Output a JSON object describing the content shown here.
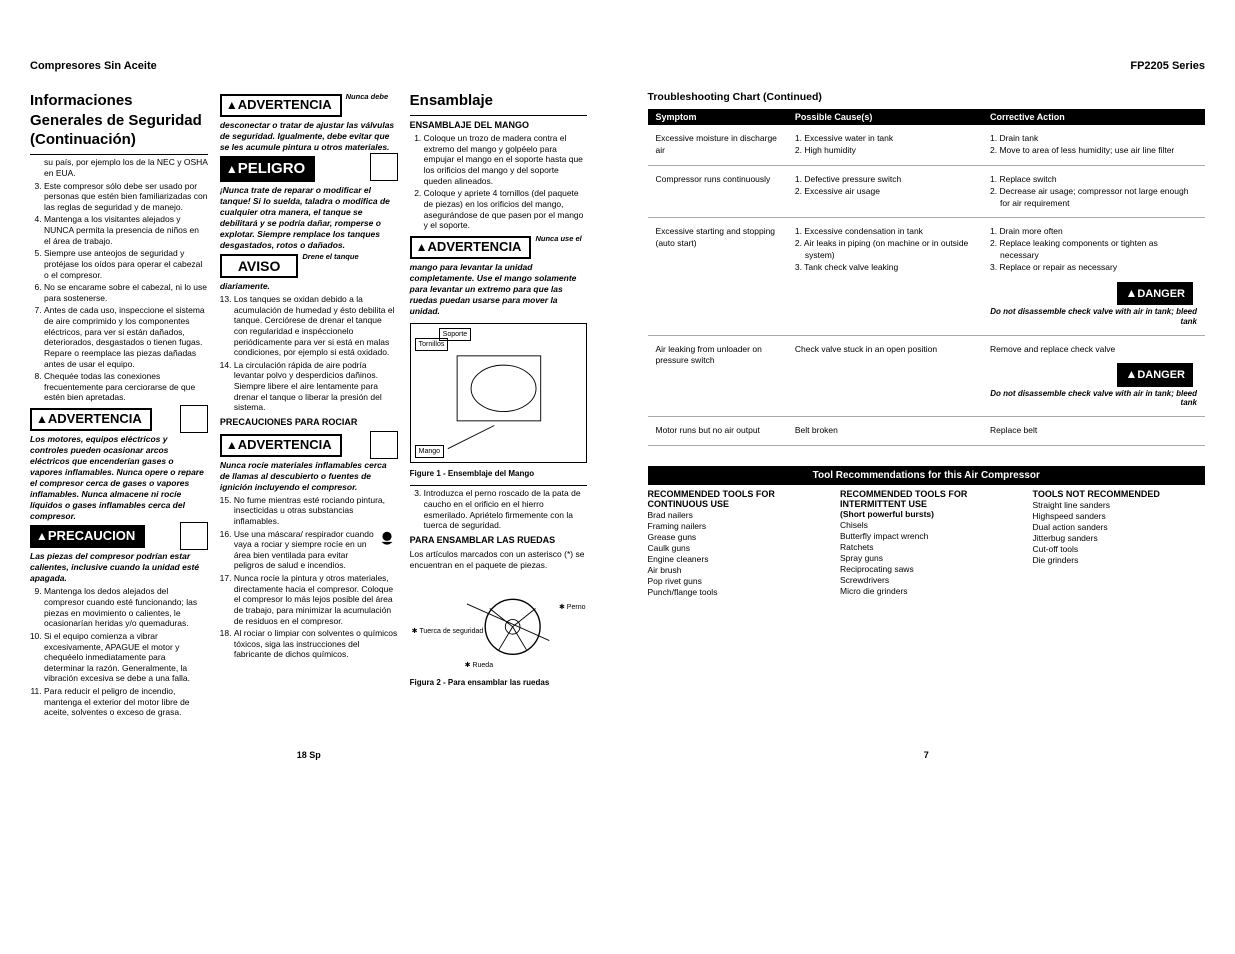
{
  "left": {
    "header": "Compresores Sin Aceite",
    "col1": {
      "title": "Informaciones Generales de Seguridad (Continuación)",
      "intro": "su país, por ejemplo los de la NEC y OSHA en EUA.",
      "items": [
        "Este compresor sólo debe ser usado por personas que estén bien familiarizadas con las reglas de seguridad y de manejo.",
        "Mantenga a los visitantes alejados y NUNCA permita la presencia de niños en el área de trabajo.",
        "Siempre use anteojos de seguridad y protéjase los oídos para operar el cabezal o el compresor.",
        "No se encarame sobre el cabezal, ni lo use para sostenerse.",
        "Antes de cada uso, inspeccione el sistema de aire comprimido y los componentes eléctricos, para ver si están dañados, deteriorados, desgastados o tienen fugas. Repare o reemplace las piezas dañadas antes de usar el equipo.",
        "Chequée todas las conexiones frecuentemente para cerciorarse de que estén bien apretadas."
      ],
      "warn1_label": "ADVERTENCIA",
      "warn1_text": "Los motores, equipos eléctricos y controles pueden ocasionar arcos eléctricos que encenderían gases o vapores inflamables. Nunca opere o repare el compresor cerca de gases o vapores inflamables. Nunca almacene ni rocíe líquidos o gases inflamables cerca del compresor.",
      "warn2_label": "PRECAUCION",
      "warn2_text": "Las piezas del compresor podrían estar calientes, inclusive cuando la unidad esté apagada.",
      "items2": [
        "Mantenga los dedos alejados del compresor cuando esté funcionando; las piezas en movimiento o calientes, le ocasionarían heridas y/o quemaduras.",
        "Si el equipo comienza a vibrar excesivamente, APAGUE el motor y chequéelo inmediatamente para determinar la razón. Generalmente, la vibración excesiva se debe a una falla.",
        "Para reducir el peligro de incendio, mantenga el exterior del motor libre de aceite, solventes o exceso de grasa."
      ]
    },
    "col2": {
      "warn1_label": "ADVERTENCIA",
      "warn1_side": "Nunca debe",
      "warn1_text": "desconectar o tratar de ajustar las válvulas de seguridad. Igualmente, debe evitar que se les acumule pintura u otros materiales.",
      "danger_label": "PELIGRO",
      "danger_text": "¡Nunca trate de reparar o modificar el tanque! Si lo suelda, taladra o modifica de cualquier otra manera, el tanque se debilitará y se podría dañar, romperse o explotar. Siempre remplace los tanques desgastados, rotos o dañados.",
      "aviso_label": "AVISO",
      "aviso_side": "Drene el tanque",
      "aviso_text": "diariamente.",
      "items": [
        "Los tanques se oxidan debido a la acumulación de humedad y ésto debilita el tanque. Cerciórese de drenar el tanque con regularidad e inspéccionelo periódicamente para ver si está en malas condiciones, por ejemplo si está oxidado.",
        "La circulación rápida de aire podría levantar polvo y desperdicios dañinos. Siempre libere el aire lentamente para drenar el tanque o liberar la presión del sistema."
      ],
      "sub1": "PRECAUCIONES PARA ROCIAR",
      "warn2_label": "ADVERTENCIA",
      "warn2_text": "Nunca rocíe materiales inflamables cerca de llamas al descubierto o fuentes de ignición incluyendo el compresor.",
      "items2": [
        "No fume mientras esté rociando pintura, insecticidas u otras substancias inflamables.",
        "Use una máscara/ respirador cuando vaya a rociar y siempre rocíe en un área bien ventilada para evitar peligros de salud e incendios.",
        "Nunca rocíe la pintura y otros materiales, directamente hacia el compresor. Coloque el compresor lo más lejos posible del área de trabajo, para minimizar la acumulación de residuos en el compresor.",
        "Al rociar o limpiar con solventes o químicos tóxicos, siga las instrucciones del fabricante de dichos químicos."
      ]
    },
    "col3": {
      "title": "Ensamblaje",
      "sub1": "ENSAMBLAJE DEL MANGO",
      "items": [
        "Coloque un trozo de madera contra el extremo del mango y golpéelo para empujar el mango en el soporte hasta que los orificios del mango y del soporte queden alineados.",
        "Coloque y apriete 4 tornillos (del paquete de piezas) en los orificios del mango, asegurándose de que pasen por el mango y el soporte."
      ],
      "warn1_label": "ADVERTENCIA",
      "warn1_side": "Nunca use el",
      "warn1_text": "mango para levantar la unidad completamente. Use el mango solamente para levantar un extremo para que las ruedas puedan usarse para mover la unidad.",
      "fig1_labels": {
        "soporte": "Soporte",
        "tornillos": "Tornillos",
        "mango": "Mango"
      },
      "fig1_caption": "Figure 1 - Ensemblaje del Mango",
      "item3": "Introduzca el perno roscado de la pata de caucho en el orificio en el hierro esmerilado. Apriételo firmemente con la tuerca de seguridad.",
      "sub2": "PARA ENSAMBLAR LAS RUEDAS",
      "text2": "Los artículos marcados con un asterisco (*) se encuentran en el paquete de piezas.",
      "fig2_labels": {
        "perno": "Perno",
        "tuerca": "Tuerca de seguridad",
        "rueda": "Rueda"
      },
      "fig2_caption": "Figura 2 - Para ensamblar las ruedas"
    },
    "page_num": "18 Sp"
  },
  "right": {
    "header": "FP2205 Series",
    "ts_title": "Troubleshooting Chart (Continued)",
    "headers": [
      "Symptom",
      "Possible Cause(s)",
      "Corrective Action"
    ],
    "rows": [
      {
        "symptom": "Excessive moisture in discharge air",
        "causes": [
          "1. Excessive water in tank",
          "2. High humidity"
        ],
        "actions": [
          "1. Drain tank",
          "2. Move to area of less humidity; use air line filter"
        ],
        "danger": null
      },
      {
        "symptom": "Compressor runs continuously",
        "causes": [
          "1. Defective pressure switch",
          "2. Excessive air usage"
        ],
        "actions": [
          "1. Replace switch",
          "2. Decrease air usage; compressor not large enough for air requirement"
        ],
        "danger": null
      },
      {
        "symptom": "Excessive starting and stopping (auto start)",
        "causes": [
          "1. Excessive condensation in tank",
          "2. Air leaks in piping (on machine or in outside system)",
          "3. Tank check valve leaking"
        ],
        "actions": [
          "1. Drain more often",
          "2. Replace leaking components or tighten as necessary",
          "3. Replace or repair as necessary"
        ],
        "danger": "Do not disassemble check valve with air in tank; bleed tank"
      },
      {
        "symptom": "Air leaking from unloader on pressure switch",
        "causes": [
          "Check valve stuck in an open position"
        ],
        "actions": [
          "Remove and replace check valve"
        ],
        "danger": "Do not disassemble check valve with air in tank; bleed tank"
      },
      {
        "symptom": "Motor runs but no air output",
        "causes": [
          "Belt broken"
        ],
        "actions": [
          "Replace belt"
        ],
        "danger": null
      }
    ],
    "danger_label": "DANGER",
    "tools_title": "Tool Recommendations for this Air Compressor",
    "tools_cols": [
      {
        "title": "RECOMMENDED TOOLS FOR CONTINUOUS USE",
        "subtitle": "",
        "items": [
          "Brad nailers",
          "Framing nailers",
          "Grease guns",
          "Caulk guns",
          "Engine cleaners",
          "Air brush",
          "Pop rivet guns",
          "Punch/flange tools"
        ]
      },
      {
        "title": "RECOMMENDED TOOLS FOR INTERMITTENT USE",
        "subtitle": "(Short powerful bursts)",
        "items": [
          "Chisels",
          "Butterfly impact wrench",
          "Ratchets",
          "Spray guns",
          "Reciprocating saws",
          "Screwdrivers",
          "Micro die grinders"
        ]
      },
      {
        "title": "TOOLS NOT RECOMMENDED",
        "subtitle": "",
        "items": [
          "Straight line sanders",
          "Highspeed sanders",
          "Dual action sanders",
          "Jitterbug sanders",
          "Cut-off tools",
          "Die grinders"
        ]
      }
    ],
    "page_num": "7"
  }
}
